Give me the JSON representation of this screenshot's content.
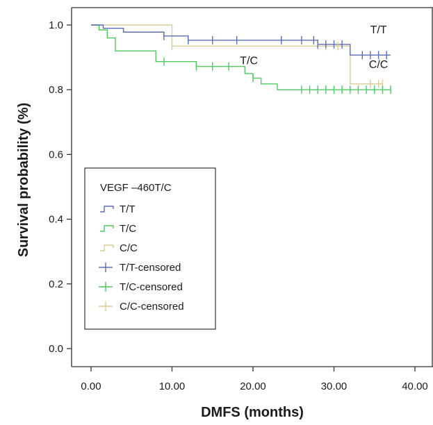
{
  "chart_data": {
    "type": "line",
    "step": true,
    "xlabel": "DMFS (months)",
    "ylabel": "Survival probability (%)",
    "xlim": [
      0,
      40
    ],
    "ylim": [
      0,
      1.0
    ],
    "x_ticks": [
      "0.00",
      "10.00",
      "20.00",
      "30.00",
      "40.00"
    ],
    "y_ticks": [
      "0.0",
      "0.2",
      "0.4",
      "0.6",
      "0.8",
      "1.0"
    ],
    "grid": false,
    "legend": {
      "title": "VEGF –460T/C",
      "placement": "lower-left",
      "entries": [
        "T/T",
        "T/C",
        "C/C",
        "T/T-censored",
        "T/C-censored",
        "C/C-censored"
      ]
    },
    "annotations": [
      {
        "text": "T/T",
        "x": 35.5,
        "y": 0.957
      },
      {
        "text": "T/C",
        "x": 19.5,
        "y": 0.862
      },
      {
        "text": "C/C",
        "x": 35.5,
        "y": 0.85
      }
    ],
    "series": [
      {
        "name": "T/T",
        "color": "#5a6fb5",
        "steps": [
          [
            0,
            1.0
          ],
          [
            1.5,
            0.99
          ],
          [
            4,
            0.978
          ],
          [
            9,
            0.966
          ],
          [
            12,
            0.953
          ],
          [
            28,
            0.94
          ],
          [
            32,
            0.907
          ],
          [
            37,
            0.907
          ]
        ],
        "censored": [
          9,
          12,
          15,
          18,
          23.5,
          26,
          27.5,
          28,
          29,
          30,
          31,
          33.5,
          34.5,
          35.5,
          36.5
        ]
      },
      {
        "name": "T/C",
        "color": "#4ccb5f",
        "steps": [
          [
            0,
            1.0
          ],
          [
            1,
            0.985
          ],
          [
            2,
            0.96
          ],
          [
            3,
            0.92
          ],
          [
            8,
            0.887
          ],
          [
            13,
            0.872
          ],
          [
            19,
            0.85
          ],
          [
            20,
            0.836
          ],
          [
            21,
            0.818
          ],
          [
            23,
            0.8
          ],
          [
            37,
            0.8
          ]
        ],
        "censored": [
          9,
          13,
          15,
          17,
          20,
          26,
          27,
          28,
          29,
          30,
          31,
          32,
          33,
          34,
          35,
          36,
          37
        ]
      },
      {
        "name": "C/C",
        "color": "#d9cc96",
        "steps": [
          [
            0,
            1.0
          ],
          [
            10,
            0.935
          ],
          [
            32,
            0.935
          ],
          [
            32,
            0.818
          ],
          [
            36,
            0.818
          ]
        ],
        "censored": [
          10,
          29,
          30.5,
          34.5,
          35.5,
          36
        ]
      }
    ]
  }
}
